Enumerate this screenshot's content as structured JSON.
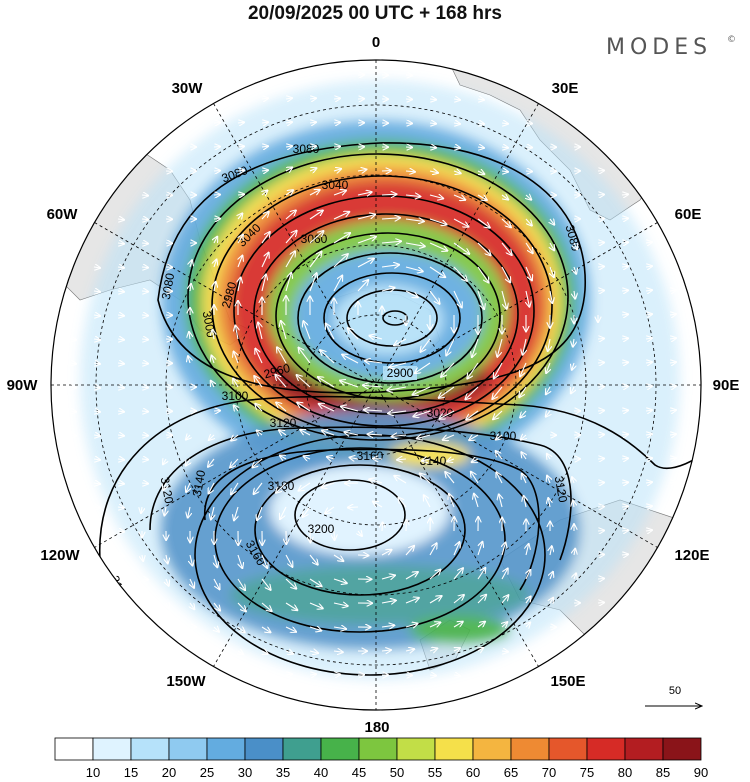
{
  "header": {
    "title": "20/09/2025  00 UTC  + 168 hrs",
    "logo": "MODES",
    "logo_mark": "©"
  },
  "map": {
    "projection": "south polar stereographic",
    "longitude_labels": {
      "lon_0": "0",
      "lon_30e": "30E",
      "lon_60e": "60E",
      "lon_90e": "90E",
      "lon_120e": "120E",
      "lon_150e": "150E",
      "lon_180": "180",
      "lon_150w": "150W",
      "lon_120w": "120W",
      "lon_90w": "90W",
      "lon_60w": "60W",
      "lon_30w": "30W"
    },
    "height_contours": {
      "c2900": "2900",
      "c2960": "2960",
      "c2980": "2980",
      "c3000": "3000",
      "c3020": "3020",
      "c3040": "3040",
      "c3040b": "3040",
      "c3060": "3060",
      "c3080a": "3080",
      "c3080b": "3080",
      "c3080c": "3080",
      "c3080d": "3080",
      "c3100a": "3100",
      "c3100b": "3100",
      "c3100c": "3100",
      "c3120a": "3120",
      "c3120b": "3120",
      "c3120c": "3120",
      "c3140a": "3140",
      "c3140b": "3140",
      "c3160a": "3160",
      "c3160b": "3160",
      "c3180": "3180",
      "c3200": "3200"
    },
    "reference_vector": "50"
  },
  "colorbar": {
    "ticks": [
      "10",
      "15",
      "20",
      "25",
      "30",
      "35",
      "40",
      "45",
      "50",
      "55",
      "60",
      "65",
      "70",
      "75",
      "80",
      "85",
      "90"
    ],
    "colors": [
      "#ffffff",
      "#dff3ff",
      "#b6e2fa",
      "#8fcaf0",
      "#63ace0",
      "#4a8fc8",
      "#3f9f8f",
      "#47b24a",
      "#7dc63f",
      "#c2de47",
      "#f5e04a",
      "#f4b540",
      "#ee8a33",
      "#e5572b",
      "#d62b26",
      "#b31d21",
      "#8a1419"
    ]
  },
  "colors": {
    "land": "#e6e6e6",
    "vector": "#ffffff",
    "contour": "#000000"
  }
}
